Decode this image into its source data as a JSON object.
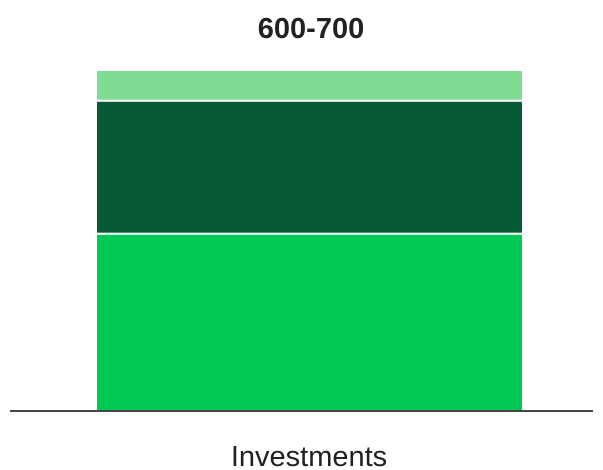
{
  "chart_data": {
    "type": "bar",
    "stacked": true,
    "title": "600-700",
    "categories": [
      "Investments"
    ],
    "xlabel": "",
    "ylabel": "",
    "ylim": [
      0,
      100
    ],
    "grid": false,
    "series": [
      {
        "values": [
          52
        ],
        "color": "#00c853"
      },
      {
        "values": [
          39
        ],
        "color": "#075a36"
      },
      {
        "values": [
          9
        ],
        "color": "#80dc92"
      }
    ],
    "axis_color": "#444444"
  }
}
